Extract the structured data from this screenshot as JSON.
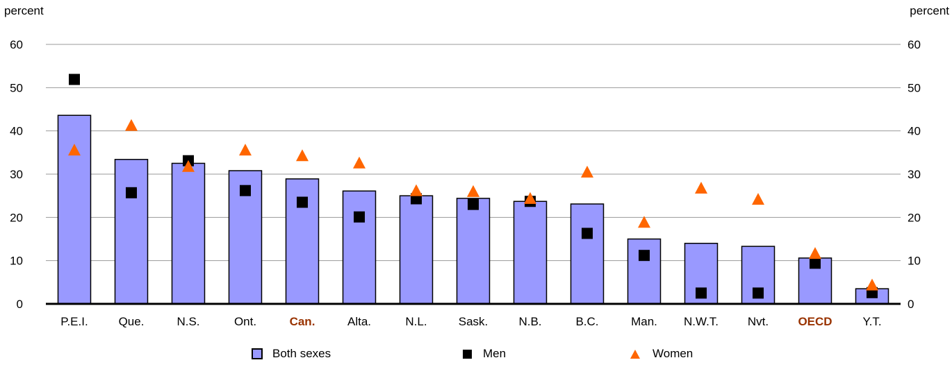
{
  "unit_left": "percent",
  "unit_right": "percent",
  "legend": {
    "both": "Both sexes",
    "men": "Men",
    "women": "Women"
  },
  "colors": {
    "bar": "#9999ff",
    "men": "#000000",
    "women": "#ff6600",
    "highlight": "#993300",
    "grid": "#999999"
  },
  "chart_data": {
    "type": "bar",
    "categories": [
      "P.E.I.",
      "Que.",
      "N.S.",
      "Ont.",
      "Can.",
      "Alta.",
      "N.L.",
      "Sask.",
      "N.B.",
      "B.C.",
      "Man.",
      "N.W.T.",
      "Nvt.",
      "OECD",
      "Y.T."
    ],
    "highlighted": [
      "Can.",
      "OECD"
    ],
    "series": [
      {
        "name": "Both sexes",
        "mark": "bar",
        "values": [
          43.6,
          33.4,
          32.5,
          30.8,
          28.9,
          26.1,
          25.0,
          24.4,
          23.7,
          23.1,
          15.0,
          14.0,
          13.3,
          10.6,
          3.5
        ]
      },
      {
        "name": "Men",
        "mark": "square",
        "values": [
          51.9,
          25.7,
          33.1,
          26.2,
          23.5,
          20.1,
          24.3,
          23.0,
          23.7,
          16.3,
          11.2,
          2.5,
          2.5,
          9.4,
          2.6
        ]
      },
      {
        "name": "Women",
        "mark": "triangle",
        "values": [
          35.6,
          41.3,
          31.8,
          35.6,
          34.3,
          32.6,
          26.2,
          26.0,
          24.4,
          30.5,
          18.9,
          26.8,
          24.2,
          11.7,
          4.4
        ]
      }
    ],
    "ylim": [
      0,
      60
    ],
    "yticks": [
      0,
      10,
      20,
      30,
      40,
      50,
      60
    ],
    "grid": true,
    "legend_position": "bottom"
  }
}
